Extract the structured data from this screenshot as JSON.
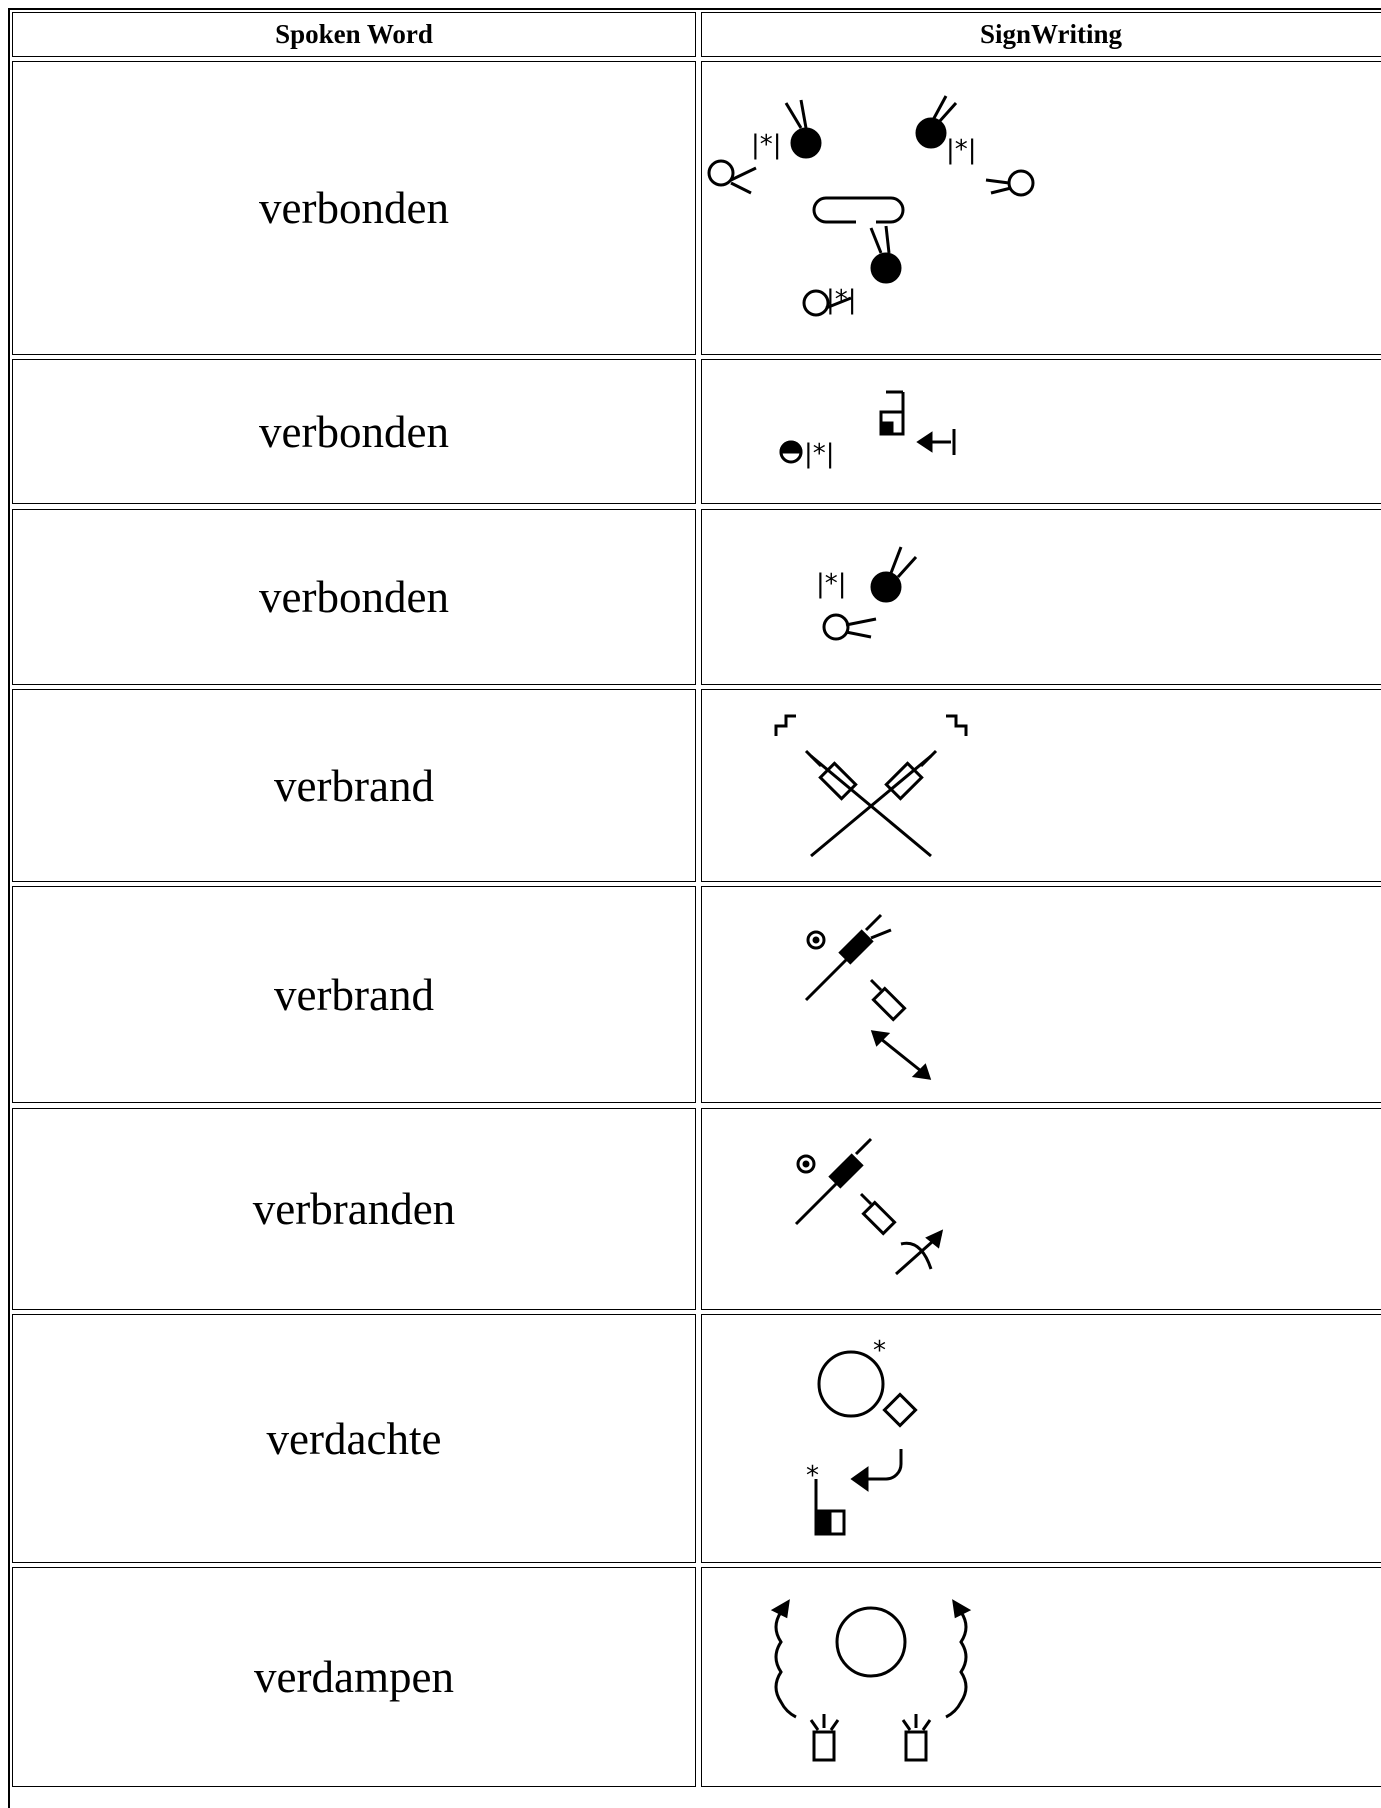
{
  "table": {
    "header": [
      "Spoken Word",
      "SignWriting"
    ],
    "rows": [
      "verbonden",
      "verbonden",
      "verbonden",
      "verbrand",
      "verbrand",
      "verbranden",
      "verdachte",
      "verdampen"
    ]
  }
}
